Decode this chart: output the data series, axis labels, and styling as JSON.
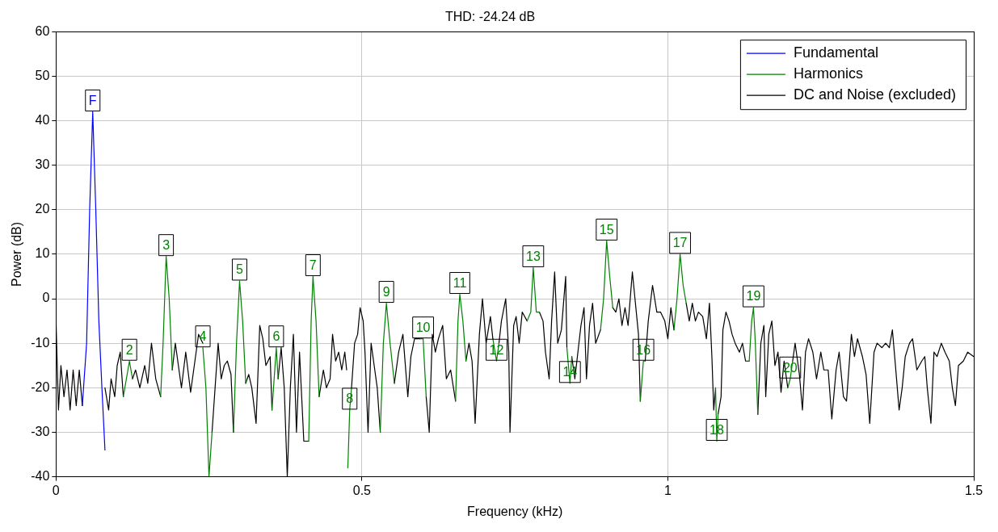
{
  "chart_data": {
    "type": "line",
    "title": "THD: -24.24 dB",
    "xlabel": "Frequency (kHz)",
    "ylabel": "Power (dB)",
    "xlim": [
      0,
      1.5
    ],
    "xticks": [
      0,
      0.5,
      1,
      1.5
    ],
    "ylim": [
      -40,
      60
    ],
    "yticks": [
      -40,
      -30,
      -20,
      -10,
      0,
      10,
      20,
      30,
      40,
      50,
      60
    ],
    "grid": true,
    "legend": "top right",
    "marker": "none",
    "series": [
      {
        "name": "Fundamental",
        "color": "#0000ff",
        "x": [
          0.043,
          0.05,
          0.055,
          0.06,
          0.065,
          0.07,
          0.075,
          0.08
        ],
        "values": [
          -24,
          -10,
          20,
          42,
          20,
          -5,
          -20,
          -34
        ]
      },
      {
        "name": "Harmonics",
        "color": "#008000",
        "x": [
          0.11,
          0.12,
          0.125,
          null,
          0.171,
          0.175,
          0.18,
          0.185,
          0.19,
          null,
          0.24,
          0.245,
          0.25,
          0.255,
          null,
          0.29,
          0.295,
          0.3,
          0.305,
          0.31,
          null,
          0.353,
          0.36,
          0.363,
          null,
          0.413,
          0.417,
          0.42,
          0.425,
          0.43,
          null,
          0.477,
          0.48,
          0.483,
          null,
          0.53,
          0.535,
          0.54,
          0.546,
          0.553,
          null,
          0.595,
          0.6,
          0.605,
          null,
          0.653,
          0.657,
          0.66,
          0.665,
          0.67,
          null,
          0.714,
          0.72,
          0.724,
          null,
          0.77,
          0.776,
          0.78,
          0.785,
          0.79,
          null,
          0.835,
          0.84,
          0.843,
          null,
          0.89,
          0.895,
          0.9,
          0.905,
          0.91,
          null,
          0.955,
          0.96,
          0.963,
          null,
          1.01,
          1.015,
          1.02,
          1.025,
          1.03,
          null,
          1.078,
          1.08,
          1.082,
          null,
          1.133,
          1.137,
          1.14,
          1.143,
          1.147,
          null,
          1.196,
          1.2,
          1.204
        ],
        "values": [
          -22,
          -14,
          -18,
          null,
          -22,
          -10,
          9.5,
          0,
          -16,
          null,
          -11,
          -20,
          -40,
          -30,
          null,
          -30,
          -10,
          4,
          -5,
          -19,
          null,
          -25,
          -11,
          -18,
          null,
          -32,
          -5,
          5,
          -5,
          -22,
          null,
          -38,
          -25,
          -20,
          null,
          -30,
          -10,
          -1,
          -10,
          -19,
          null,
          -9,
          -9,
          -22,
          null,
          -23,
          -5,
          1,
          -5,
          -14,
          null,
          -9,
          -14,
          -10,
          null,
          -5,
          -3,
          7,
          -3,
          -3,
          null,
          -11,
          -19,
          -13,
          null,
          -7,
          0,
          13,
          5,
          -2,
          null,
          -23,
          -14,
          -14,
          null,
          -7,
          0,
          10,
          3,
          -1,
          null,
          -20,
          -32,
          -26,
          null,
          -14,
          -5,
          -2,
          -10,
          -26,
          null,
          -20,
          -18,
          -14
        ]
      },
      {
        "name": "DC and Noise (excluded)",
        "color": "#000000",
        "x": [
          0,
          0.004,
          0.008,
          0.013,
          0.018,
          0.023,
          0.028,
          0.033,
          0.038,
          0.043,
          null,
          0.08,
          0.086,
          0.09,
          0.096,
          0.1,
          0.105,
          0.11,
          null,
          0.125,
          0.13,
          0.137,
          0.145,
          0.15,
          0.156,
          0.163,
          0.171,
          null,
          0.19,
          0.195,
          0.2,
          0.205,
          0.212,
          0.22,
          0.228,
          0.233,
          0.24,
          null,
          0.255,
          0.26,
          0.265,
          0.27,
          0.275,
          0.28,
          0.286,
          0.29,
          null,
          0.31,
          0.315,
          0.32,
          0.327,
          0.333,
          0.338,
          0.343,
          0.35,
          0.353,
          null,
          0.363,
          0.368,
          0.373,
          0.378,
          0.383,
          0.388,
          0.393,
          0.398,
          0.405,
          0.413,
          null,
          0.43,
          0.437,
          0.442,
          0.448,
          0.452,
          0.457,
          0.462,
          0.467,
          0.472,
          0.475,
          null,
          0.483,
          0.488,
          0.493,
          0.497,
          0.502,
          0.505,
          0.51,
          0.515,
          0.52,
          0.525,
          0.53,
          null,
          0.553,
          0.56,
          0.567,
          0.575,
          0.58,
          0.586,
          0.595,
          null,
          0.605,
          0.61,
          0.615,
          0.62,
          0.625,
          0.632,
          0.638,
          0.645,
          0.653,
          null,
          0.67,
          0.675,
          0.68,
          0.685,
          0.692,
          0.697,
          0.703,
          0.71,
          0.714,
          null,
          0.724,
          0.728,
          0.735,
          0.74,
          0.742,
          0.748,
          0.752,
          0.757,
          0.762,
          0.77,
          null,
          0.79,
          0.796,
          0.8,
          0.806,
          0.81,
          0.815,
          0.82,
          0.826,
          0.833,
          0.835,
          null,
          0.843,
          0.848,
          0.853,
          0.858,
          0.863,
          0.867,
          0.872,
          0.877,
          0.882,
          0.89,
          null,
          0.91,
          0.915,
          0.92,
          0.925,
          0.93,
          0.935,
          0.942,
          0.947,
          0.952,
          0.955,
          null,
          0.963,
          0.968,
          0.975,
          0.982,
          0.988,
          0.995,
          1.0,
          1.005,
          1.01,
          null,
          1.03,
          1.035,
          1.04,
          1.045,
          1.05,
          1.057,
          1.063,
          1.068,
          1.072,
          1.075,
          1.078,
          null,
          1.082,
          1.087,
          1.09,
          1.095,
          1.1,
          1.105,
          1.11,
          1.117,
          1.122,
          1.127,
          1.133,
          null,
          1.147,
          1.152,
          1.157,
          1.16,
          1.165,
          1.17,
          1.175,
          1.18,
          1.185,
          1.19,
          1.196,
          null,
          1.204,
          1.208,
          1.215,
          1.22,
          1.225,
          1.23,
          1.237,
          1.243,
          1.25,
          1.255,
          1.262,
          1.268,
          1.275,
          1.28,
          1.287,
          1.292,
          1.3,
          1.305,
          1.31,
          1.318,
          1.324,
          1.33,
          1.337,
          1.342,
          1.35,
          1.356,
          1.362,
          1.367,
          1.372,
          1.378,
          1.383,
          1.388,
          1.395,
          1.4,
          1.407,
          1.415,
          1.42,
          1.424,
          1.43,
          1.435,
          1.44,
          1.447,
          1.453,
          1.46,
          1.465,
          1.47,
          1.475,
          1.483,
          1.49,
          1.5
        ],
        "values": [
          -5,
          -25,
          -15,
          -22,
          -16,
          -25,
          -16,
          -24,
          -16,
          -24,
          null,
          -20,
          -25,
          -18,
          -22,
          -15,
          -12,
          -22,
          null,
          -18,
          -16,
          -20,
          -15,
          -19,
          -10,
          -18,
          -22,
          null,
          -16,
          -10,
          -15,
          -20,
          -12,
          -21,
          -13,
          -8,
          -10,
          null,
          -30,
          -20,
          -10,
          -18,
          -15,
          -14,
          -17,
          -30,
          null,
          -19,
          -17,
          -20,
          -28,
          -6,
          -9,
          -15,
          -13,
          -25,
          null,
          -18,
          -11,
          -20,
          -40,
          -20,
          -8,
          -30,
          -12,
          -32,
          -32,
          null,
          -22,
          -16,
          -20,
          -18,
          -8,
          -14,
          -12,
          -16,
          -12,
          -16,
          null,
          -20,
          -10,
          -8,
          -2,
          -5,
          -12,
          -30,
          -10,
          -15,
          -20,
          -30,
          null,
          -19,
          -12,
          -8,
          -22,
          -13,
          -9,
          -9,
          null,
          -22,
          -30,
          -8,
          -12,
          -9,
          -6,
          -18,
          -16,
          -23,
          null,
          -14,
          -10,
          -14,
          -28,
          -8,
          0,
          -10,
          -4,
          -9,
          null,
          -10,
          -5,
          0,
          -12,
          -30,
          -6,
          -4,
          -10,
          -3,
          -5,
          null,
          -3,
          -5,
          -12,
          -18,
          -5,
          6,
          -10,
          -7,
          5,
          -11,
          null,
          -13,
          -18,
          -12,
          -6,
          -2,
          -18,
          -6,
          -1,
          -10,
          -7,
          null,
          -2,
          -3,
          0,
          -6,
          -2,
          -6,
          6,
          -1,
          -8,
          -23,
          null,
          -14,
          -5,
          3,
          -3,
          -3,
          -5,
          -9,
          -2,
          -7,
          null,
          -1,
          -5,
          -1,
          -5,
          -3,
          -4,
          -9,
          -1,
          -13,
          -25,
          -20,
          null,
          -26,
          -22,
          -7,
          -3,
          -5,
          -8,
          -10,
          -12,
          -10,
          -14,
          -14,
          null,
          -26,
          -10,
          -6,
          -22,
          -8,
          -5,
          -15,
          -12,
          -21,
          -14,
          -20,
          null,
          -14,
          -10,
          -17,
          -25,
          -12,
          -9,
          -12,
          -18,
          -12,
          -16,
          -16,
          -27,
          -16,
          -12,
          -22,
          -23,
          -8,
          -13,
          -9,
          -13,
          -17,
          -28,
          -12,
          -10,
          -11,
          -10,
          -11,
          -7,
          -15,
          -25,
          -20,
          -13,
          -10,
          -9,
          -16,
          -14,
          -13,
          -20,
          -28,
          -12,
          -13,
          -10,
          -12,
          -14,
          -20,
          -24,
          -15,
          -14,
          -12,
          -13
        ]
      }
    ],
    "annotations": [
      {
        "text": "F",
        "x": 0.06,
        "y": 42
      },
      {
        "text": "2",
        "x": 0.12,
        "y": -14
      },
      {
        "text": "3",
        "x": 0.18,
        "y": 9.5
      },
      {
        "text": "4",
        "x": 0.24,
        "y": -11
      },
      {
        "text": "5",
        "x": 0.3,
        "y": 4
      },
      {
        "text": "6",
        "x": 0.36,
        "y": -11
      },
      {
        "text": "7",
        "x": 0.42,
        "y": 5
      },
      {
        "text": "8",
        "x": 0.48,
        "y": -25
      },
      {
        "text": "9",
        "x": 0.54,
        "y": -1
      },
      {
        "text": "10",
        "x": 0.6,
        "y": -9
      },
      {
        "text": "11",
        "x": 0.66,
        "y": 1
      },
      {
        "text": "12",
        "x": 0.72,
        "y": -14
      },
      {
        "text": "13",
        "x": 0.78,
        "y": 7
      },
      {
        "text": "14",
        "x": 0.84,
        "y": -19
      },
      {
        "text": "15",
        "x": 0.9,
        "y": 13
      },
      {
        "text": "16",
        "x": 0.96,
        "y": -14
      },
      {
        "text": "17",
        "x": 1.02,
        "y": 10
      },
      {
        "text": "18",
        "x": 1.08,
        "y": -32
      },
      {
        "text": "19",
        "x": 1.14,
        "y": -2
      },
      {
        "text": "20",
        "x": 1.2,
        "y": -18
      }
    ]
  }
}
